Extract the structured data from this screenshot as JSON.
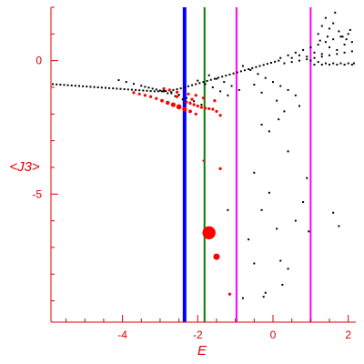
{
  "chart_data": {
    "type": "scatter",
    "xlabel": "E",
    "ylabel": "<J3>",
    "xlim": [
      -5.9,
      2.2
    ],
    "ylim": [
      -9.8,
      2.0
    ],
    "xticks": [
      {
        "value": -4,
        "label": "-4"
      },
      {
        "value": -2,
        "label": "-2"
      },
      {
        "value": 0,
        "label": "0"
      },
      {
        "value": 2,
        "label": "2"
      }
    ],
    "yticks": [
      {
        "value": 0,
        "label": "0"
      },
      {
        "value": -5,
        "label": "-5"
      }
    ],
    "colors": {
      "axis": "#e00000",
      "black_points": "#000000",
      "red_points": "#ff0000",
      "blue_line": "#0000ff",
      "green_line": "#008000",
      "magenta_line": "#ff00ff"
    },
    "vertical_lines": [
      {
        "x": -2.35,
        "color": "#0000ff",
        "width": "thick"
      },
      {
        "x": -1.82,
        "color": "#008000",
        "width": "thin"
      },
      {
        "x": -0.97,
        "color": "#ff00ff",
        "width": "thin"
      },
      {
        "x": 1.0,
        "color": "#ff00ff",
        "width": "thin"
      }
    ],
    "series": [
      {
        "color": "#000000",
        "points": [
          [
            -5.85,
            -0.88
          ],
          [
            -5.75,
            -0.89
          ],
          [
            -5.65,
            -0.9
          ],
          [
            -5.55,
            -0.91
          ],
          [
            -5.45,
            -0.92
          ],
          [
            -5.35,
            -0.93
          ],
          [
            -5.25,
            -0.94
          ],
          [
            -5.15,
            -0.95
          ],
          [
            -5.05,
            -0.96
          ],
          [
            -4.95,
            -0.97
          ],
          [
            -4.85,
            -0.98
          ],
          [
            -4.75,
            -0.99
          ],
          [
            -4.65,
            -1.0
          ],
          [
            -4.55,
            -1.01
          ],
          [
            -4.45,
            -1.02
          ],
          [
            -4.35,
            -1.03
          ],
          [
            -4.25,
            -1.04
          ],
          [
            -4.15,
            -1.05
          ],
          [
            -4.05,
            -1.06
          ],
          [
            -3.95,
            -1.07
          ],
          [
            -3.85,
            -1.08
          ],
          [
            -3.75,
            -1.09
          ],
          [
            -3.65,
            -1.1
          ],
          [
            -3.55,
            -1.11
          ],
          [
            -3.45,
            -1.12
          ],
          [
            -3.35,
            -1.13
          ],
          [
            -3.25,
            -1.14
          ],
          [
            -3.15,
            -1.15
          ],
          [
            -3.05,
            -1.15
          ],
          [
            -2.95,
            -1.15
          ],
          [
            -2.85,
            -1.14
          ],
          [
            -2.75,
            -1.12
          ],
          [
            -2.65,
            -1.1
          ],
          [
            -2.55,
            -1.07
          ],
          [
            -2.45,
            -1.04
          ],
          [
            -2.35,
            -1.0
          ],
          [
            -2.25,
            -0.96
          ],
          [
            -2.15,
            -0.92
          ],
          [
            -2.05,
            -0.88
          ],
          [
            -1.95,
            -0.84
          ],
          [
            -1.85,
            -0.8
          ],
          [
            -1.75,
            -0.76
          ],
          [
            -1.65,
            -0.72
          ],
          [
            -1.55,
            -0.68
          ],
          [
            -1.45,
            -0.64
          ],
          [
            -1.35,
            -0.6
          ],
          [
            -1.25,
            -0.56
          ],
          [
            -1.15,
            -0.52
          ],
          [
            -1.05,
            -0.48
          ],
          [
            -0.95,
            -0.44
          ],
          [
            -0.85,
            -0.4
          ],
          [
            -0.75,
            -0.36
          ],
          [
            -0.65,
            -0.32
          ],
          [
            -0.55,
            -0.28
          ],
          [
            -0.45,
            -0.24
          ],
          [
            -0.35,
            -0.2
          ],
          [
            -0.25,
            -0.16
          ],
          [
            -0.15,
            -0.12
          ],
          [
            -0.05,
            -0.08
          ],
          [
            0.05,
            -0.04
          ],
          [
            0.15,
            0.0
          ],
          [
            -4.1,
            -0.73
          ],
          [
            -3.9,
            -0.8
          ],
          [
            -3.7,
            -0.87
          ],
          [
            -3.5,
            -0.94
          ],
          [
            -3.3,
            -1.01
          ],
          [
            -3.1,
            -1.08
          ],
          [
            -2.9,
            -1.15
          ],
          [
            -2.7,
            -1.22
          ],
          [
            -2.5,
            -1.29
          ],
          [
            -3.4,
            -0.98
          ],
          [
            -3.2,
            -1.05
          ],
          [
            -3.0,
            -1.12
          ],
          [
            -2.8,
            -1.22
          ],
          [
            -2.6,
            -1.33
          ],
          [
            -2.4,
            -1.45
          ],
          [
            -2.2,
            -1.57
          ],
          [
            -2.0,
            -1.7
          ],
          [
            -2.9,
            -1.1
          ],
          [
            -2.7,
            -1.18
          ],
          [
            -2.5,
            -1.28
          ],
          [
            -2.3,
            -1.4
          ],
          [
            -2.1,
            -1.52
          ],
          [
            -1.9,
            -1.65
          ],
          [
            -1.7,
            -1.8
          ],
          [
            -2.0,
            -0.75
          ],
          [
            -1.8,
            -0.88
          ],
          [
            -1.6,
            -1.0
          ],
          [
            -1.4,
            -1.15
          ],
          [
            -1.2,
            -1.3
          ],
          [
            -1.7,
            -0.55
          ],
          [
            -1.5,
            -0.68
          ],
          [
            -1.3,
            -0.8
          ],
          [
            -1.1,
            -0.95
          ],
          [
            -0.9,
            -1.1
          ],
          [
            -0.8,
            -0.2
          ],
          [
            -0.6,
            -0.35
          ],
          [
            -0.4,
            -0.5
          ],
          [
            -0.2,
            -0.65
          ],
          [
            0.0,
            -0.8
          ],
          [
            0.2,
            -0.95
          ],
          [
            0.4,
            -1.1
          ],
          [
            0.6,
            -1.3
          ],
          [
            -0.5,
            -0.9
          ],
          [
            -0.3,
            -1.2
          ],
          [
            0.1,
            -1.5
          ],
          [
            0.3,
            -1.9
          ],
          [
            0.7,
            -1.7
          ],
          [
            0.2,
            0.1
          ],
          [
            0.4,
            0.2
          ],
          [
            0.6,
            0.3
          ],
          [
            0.8,
            0.4
          ],
          [
            1.0,
            0.5
          ],
          [
            1.2,
            0.6
          ],
          [
            1.4,
            0.7
          ],
          [
            1.6,
            0.8
          ],
          [
            1.8,
            0.9
          ],
          [
            2.0,
            1.0
          ],
          [
            0.3,
            -0.1
          ],
          [
            0.5,
            -0.05
          ],
          [
            0.7,
            0.0
          ],
          [
            0.9,
            0.05
          ],
          [
            1.1,
            0.1
          ],
          [
            1.3,
            0.15
          ],
          [
            1.5,
            0.2
          ],
          [
            1.7,
            0.25
          ],
          [
            1.9,
            0.3
          ],
          [
            2.1,
            0.35
          ],
          [
            0.5,
            0.1
          ],
          [
            0.7,
            0.2
          ],
          [
            0.9,
            0.15
          ],
          [
            1.1,
            0.3
          ],
          [
            1.3,
            0.25
          ],
          [
            1.5,
            0.5
          ],
          [
            1.7,
            0.4
          ],
          [
            1.9,
            0.6
          ],
          [
            2.1,
            0.7
          ],
          [
            1.2,
            1.0
          ],
          [
            1.3,
            1.3
          ],
          [
            1.4,
            1.6
          ],
          [
            1.5,
            1.2
          ],
          [
            1.6,
            1.4
          ],
          [
            1.65,
            1.8
          ],
          [
            1.75,
            1.1
          ],
          [
            1.85,
            0.9
          ],
          [
            1.95,
            0.8
          ],
          [
            2.05,
            1.15
          ],
          [
            1.45,
            0.9
          ],
          [
            1.25,
            0.75
          ],
          [
            1.0,
            0.0
          ],
          [
            1.2,
            -0.05
          ],
          [
            1.4,
            -0.1
          ],
          [
            1.6,
            -0.1
          ],
          [
            1.8,
            -0.1
          ],
          [
            2.0,
            -0.1
          ],
          [
            2.15,
            -0.1
          ],
          [
            1.1,
            -0.15
          ],
          [
            1.3,
            -0.15
          ],
          [
            1.5,
            -0.15
          ],
          [
            1.7,
            -0.15
          ],
          [
            1.9,
            -0.15
          ],
          [
            2.1,
            -0.15
          ],
          [
            -0.3,
            -2.4
          ],
          [
            -0.1,
            -2.65
          ],
          [
            0.15,
            -2.2
          ],
          [
            0.4,
            -3.4
          ],
          [
            -0.5,
            -4.2
          ],
          [
            -0.1,
            -4.95
          ],
          [
            0.8,
            -5.3
          ],
          [
            0.6,
            -6.0
          ],
          [
            0.95,
            -6.4
          ],
          [
            1.6,
            -5.7
          ],
          [
            1.75,
            -6.2
          ],
          [
            -0.65,
            -6.7
          ],
          [
            -0.5,
            -7.6
          ],
          [
            0.1,
            -6.3
          ],
          [
            -0.3,
            -5.6
          ],
          [
            0.2,
            -7.5
          ],
          [
            0.4,
            -7.8
          ],
          [
            -0.2,
            -8.7
          ],
          [
            -0.25,
            -8.85
          ],
          [
            -0.8,
            -8.9
          ],
          [
            -1.2,
            -5.6
          ],
          [
            0.9,
            -4.4
          ],
          [
            0.25,
            -8.4
          ]
        ]
      },
      {
        "color": "#ff0000",
        "points": [
          [
            -3.7,
            -1.2
          ],
          [
            -3.55,
            -1.25
          ],
          [
            -3.4,
            -1.3
          ],
          [
            -3.25,
            -1.35
          ],
          [
            -3.1,
            -1.42
          ],
          [
            -2.95,
            -1.5
          ],
          [
            -2.8,
            -1.58
          ],
          [
            -2.65,
            -1.65
          ],
          [
            -2.5,
            -1.73
          ],
          [
            -2.35,
            -1.82
          ],
          [
            -2.2,
            -1.9
          ],
          [
            -2.05,
            -2.0
          ],
          [
            -2.3,
            -1.55
          ],
          [
            -2.2,
            -1.6
          ],
          [
            -2.1,
            -1.65
          ],
          [
            -2.0,
            -1.7
          ],
          [
            -1.9,
            -1.75
          ],
          [
            -1.8,
            -1.78
          ],
          [
            -1.7,
            -1.8
          ],
          [
            -1.6,
            -1.82
          ],
          [
            -2.9,
            -1.05
          ],
          [
            -2.75,
            -1.1
          ],
          [
            -2.55,
            -1.18
          ],
          [
            -2.25,
            -1.25
          ],
          [
            -2.05,
            -1.3
          ],
          [
            -1.85,
            -1.4
          ],
          [
            -1.55,
            -1.5
          ],
          [
            -1.5,
            -1.9
          ],
          [
            -1.4,
            -2.05
          ],
          [
            -2.55,
            -1.35
          ],
          [
            -2.15,
            -1.45
          ],
          [
            -1.85,
            -3.75
          ],
          [
            -1.4,
            -4.05
          ],
          [
            -1.15,
            -8.75
          ]
        ],
        "sizes": [
          1.0,
          1.0,
          1.0,
          1.0,
          1.0,
          1.2,
          1.4,
          1.6,
          1.8,
          1.6,
          1.2,
          1.0,
          1.0,
          1.0,
          1.0,
          1.0,
          1.0,
          1.0,
          1.0,
          1.0,
          1.0,
          1.0,
          1.0,
          1.0,
          1.0,
          1.0,
          1.0,
          1.0,
          1.0,
          1.0,
          1.0,
          0.7,
          1.0,
          1.0
        ],
        "big_points": [
          {
            "x": -1.7,
            "y": -6.45,
            "size": 4.5
          },
          {
            "x": -1.5,
            "y": -7.35,
            "size": 2.2
          }
        ]
      }
    ]
  }
}
